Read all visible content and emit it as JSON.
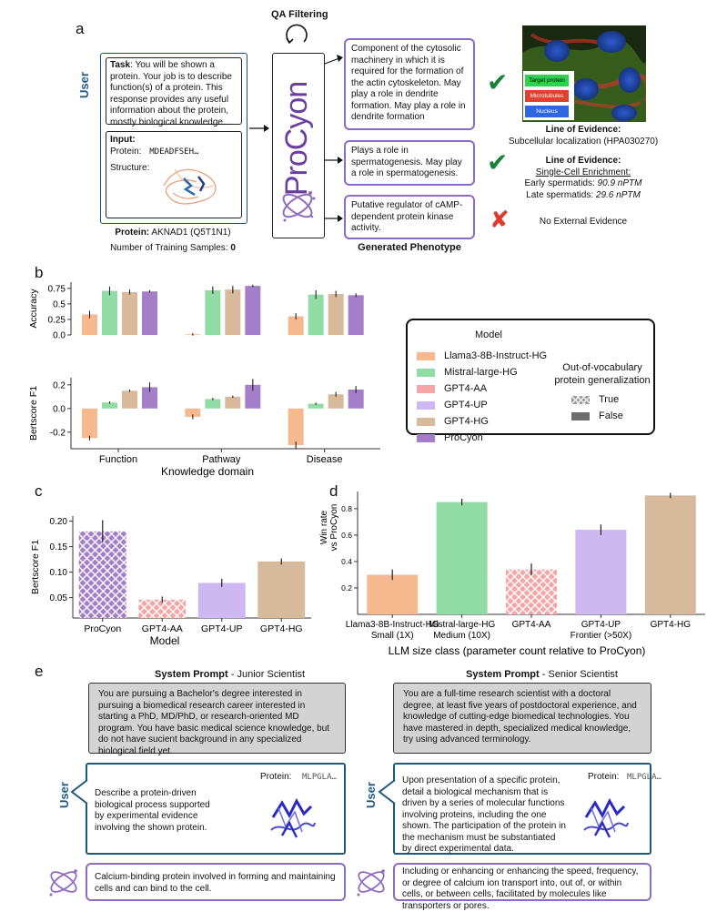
{
  "panel_labels": {
    "a": "a",
    "b": "b",
    "c": "c",
    "d": "d",
    "e": "e"
  },
  "panel_a": {
    "qa_filtering": "QA Filtering",
    "user_label": "User",
    "task_label": "Task",
    "task_text": ": You will be shown a protein. Your job is to describe function(s) of a protein. This response provides any useful information about the protein, mostly biological knowledge…",
    "input_label": "Input:",
    "protein_label": "Protein:",
    "protein_seq": "MDEADFSEH…",
    "structure_label": "Structure:",
    "protein_caption_bold": "Protein:",
    "protein_caption": " AKNAD1 (Q5T1N1)",
    "training_samples_label": "Number of Training Samples: ",
    "training_samples_value": "0",
    "procyon_logo": "ProCyon",
    "answer_1": "Component of the cytosolic machinery in which it is required for the formation of the actin cytoskeleton. May play a role in dendrite formation. May play a role in dendrite formation",
    "answer_2": "Plays a role in spermatogenesis. May play a role in spermatogenesis.",
    "answer_3": "Putative regulator of cAMP-dependent protein kinase activity.",
    "generated_phenotype": "Generated Phenotype",
    "mark_1": "✔",
    "mark_2": "✔",
    "mark_3": "✘",
    "micro_legend": [
      "Target protein",
      "Microtubules",
      "Nucleus"
    ],
    "evidence_1_title": "Line of Evidence:",
    "evidence_1_text": "Subcellular localization (HPA030270)",
    "evidence_2_title": "Line of Evidence:",
    "evidence_2_sub": "Single-Cell Enrichment:",
    "evidence_2_early": "Early spermatids: ",
    "evidence_2_early_val": "90.9 nPTM",
    "evidence_2_late": "Late spermatids: ",
    "evidence_2_late_val": "29.6 nPTM",
    "evidence_3": "No External Evidence"
  },
  "colors": {
    "Llama3-8B-Instruct-HG": "#f6b88f",
    "Mistral-large-HG": "#90dca4",
    "GPT4-AA": "#f4a5a5",
    "GPT4-UP": "#cdb8f2",
    "GPT4-HG": "#d7b99c",
    "ProCyon": "#a47ec9",
    "green_check": "#1a7f37",
    "red_x": "#e03a2f",
    "purple_border": "#8f6bc0",
    "user_blue": "#1f5a85"
  },
  "chart_data": [
    {
      "id": "b_accuracy",
      "type": "bar",
      "ylabel": "Accuracy",
      "yticks": [
        0.0,
        0.25,
        0.5,
        0.75
      ],
      "ylim": [
        0,
        0.85
      ],
      "categories": [
        "Function",
        "Pathway",
        "Disease"
      ],
      "series": [
        {
          "name": "Llama3-8B-Instruct-HG",
          "values": [
            0.33,
            0.01,
            0.3
          ],
          "err": [
            0.06,
            0.02,
            0.05
          ]
        },
        {
          "name": "Mistral-large-HG",
          "values": [
            0.71,
            0.72,
            0.65
          ],
          "err": [
            0.07,
            0.06,
            0.07
          ]
        },
        {
          "name": "GPT4-HG",
          "values": [
            0.69,
            0.73,
            0.66
          ],
          "err": [
            0.04,
            0.06,
            0.05
          ]
        },
        {
          "name": "ProCyon",
          "values": [
            0.7,
            0.79,
            0.64
          ],
          "err": [
            0.02,
            0.02,
            0.03
          ]
        }
      ]
    },
    {
      "id": "b_bertscore",
      "type": "bar",
      "ylabel": "Bertscore F1",
      "xlabel": "Knowledge domain",
      "yticks": [
        -0.2,
        0.0,
        0.2
      ],
      "ylim": [
        -0.34,
        0.26
      ],
      "categories": [
        "Function",
        "Pathway",
        "Disease"
      ],
      "series": [
        {
          "name": "Llama3-8B-Instruct-HG",
          "values": [
            -0.25,
            -0.07,
            -0.31
          ],
          "err": [
            0.02,
            0.02,
            0.03
          ]
        },
        {
          "name": "Mistral-large-HG",
          "values": [
            0.05,
            0.08,
            0.04
          ],
          "err": [
            0.01,
            0.01,
            0.01
          ]
        },
        {
          "name": "GPT4-HG",
          "values": [
            0.15,
            0.1,
            0.12
          ],
          "err": [
            0.01,
            0.01,
            0.02
          ]
        },
        {
          "name": "ProCyon",
          "values": [
            0.18,
            0.2,
            0.16
          ],
          "err": [
            0.04,
            0.05,
            0.03
          ]
        }
      ]
    },
    {
      "id": "c",
      "type": "bar",
      "ylabel": "Bertscore F1",
      "xlabel": "Model",
      "yticks": [
        0.05,
        0.1,
        0.15,
        0.2
      ],
      "ytick_labels": [
        "0.05",
        "0.10",
        "0.15",
        "0.20"
      ],
      "ylim": [
        0.01,
        0.21
      ],
      "categories": [
        "ProCyon",
        "GPT4-AA",
        "GPT4-UP",
        "GPT4-HG"
      ],
      "values": [
        0.18,
        0.046,
        0.079,
        0.121
      ],
      "err": [
        0.022,
        0.006,
        0.008,
        0.006
      ],
      "hatched": [
        true,
        true,
        false,
        false
      ],
      "colors": [
        "ProCyon",
        "GPT4-AA",
        "GPT4-UP",
        "GPT4-HG"
      ]
    },
    {
      "id": "d",
      "type": "bar",
      "ylabel": "Win rate\nvs ProCyon",
      "xlabel": "LLM size class (parameter count relative to ProCyon)",
      "yticks": [
        0.2,
        0.4,
        0.6,
        0.8
      ],
      "ylim": [
        0,
        0.93
      ],
      "categories": [
        "Llama3-8B-Instruct-HG",
        "Mistral-large-HG",
        "GPT4-AA",
        "GPT4-UP",
        "GPT4-HG"
      ],
      "values": [
        0.3,
        0.85,
        0.34,
        0.64,
        0.9
      ],
      "err": [
        0.04,
        0.025,
        0.045,
        0.04,
        0.02
      ],
      "hatched": [
        false,
        false,
        true,
        false,
        false
      ],
      "colors": [
        "Llama3-8B-Instruct-HG",
        "Mistral-large-HG",
        "GPT4-AA",
        "GPT4-UP",
        "GPT4-HG"
      ],
      "size_labels": [
        "Small (1X)",
        "Medium (10X)",
        "",
        "Frontier (>50X)",
        ""
      ]
    }
  ],
  "legend": {
    "title": "Model",
    "items": [
      "Llama3-8B-Instruct-HG",
      "Mistral-large-HG",
      "GPT4-AA",
      "GPT4-UP",
      "GPT4-HG",
      "ProCyon"
    ],
    "ood_title_1": "Out-of-vocabulary",
    "ood_title_2": "protein generalization",
    "ood_true": "True",
    "ood_false": "False"
  },
  "panel_e": {
    "sys_prompt_bold": "System Prompt",
    "junior_suffix": " - Junior Scientist",
    "senior_suffix": " - Senior Scientist",
    "junior_prompt": "You are pursuing a Bachelor's degree interested in pursuing a biomedical research career interested in starting a PhD, MD/PhD, or research-oriented MD program. You have basic medical science knowledge, but do not have sucient background in any specialized biological field yet.",
    "senior_prompt": "You are a full-time research scientist with a doctoral degree, at least five years of postdoctoral experience, and knowledge of cutting-edge biomedical technologies. You have mastered in depth, specialized medical knowledge, try using advanced terminology.",
    "user_label": "User",
    "junior_question": "Describe a protein-driven biological process supported by experimental evidence involving the shown protein.",
    "senior_question": "Upon presentation of a specific protein, detail a biological mechanism that is driven by a series of molecular functions involving proteins, including the one shown. The participation of the protein in the mechanism must be substantiated by direct experimental data.",
    "protein_label": "Protein:",
    "protein_seq": "MLPGLA…",
    "junior_answer": "Calcium-binding protein involved in forming and maintaining cells and can bind to the cell.",
    "senior_answer": "Including or enhancing or enhancing the speed, frequency, or degree of calcium ion transport into, out of, or within cells, or between cells, facilitated by molecules like transporters or pores."
  }
}
